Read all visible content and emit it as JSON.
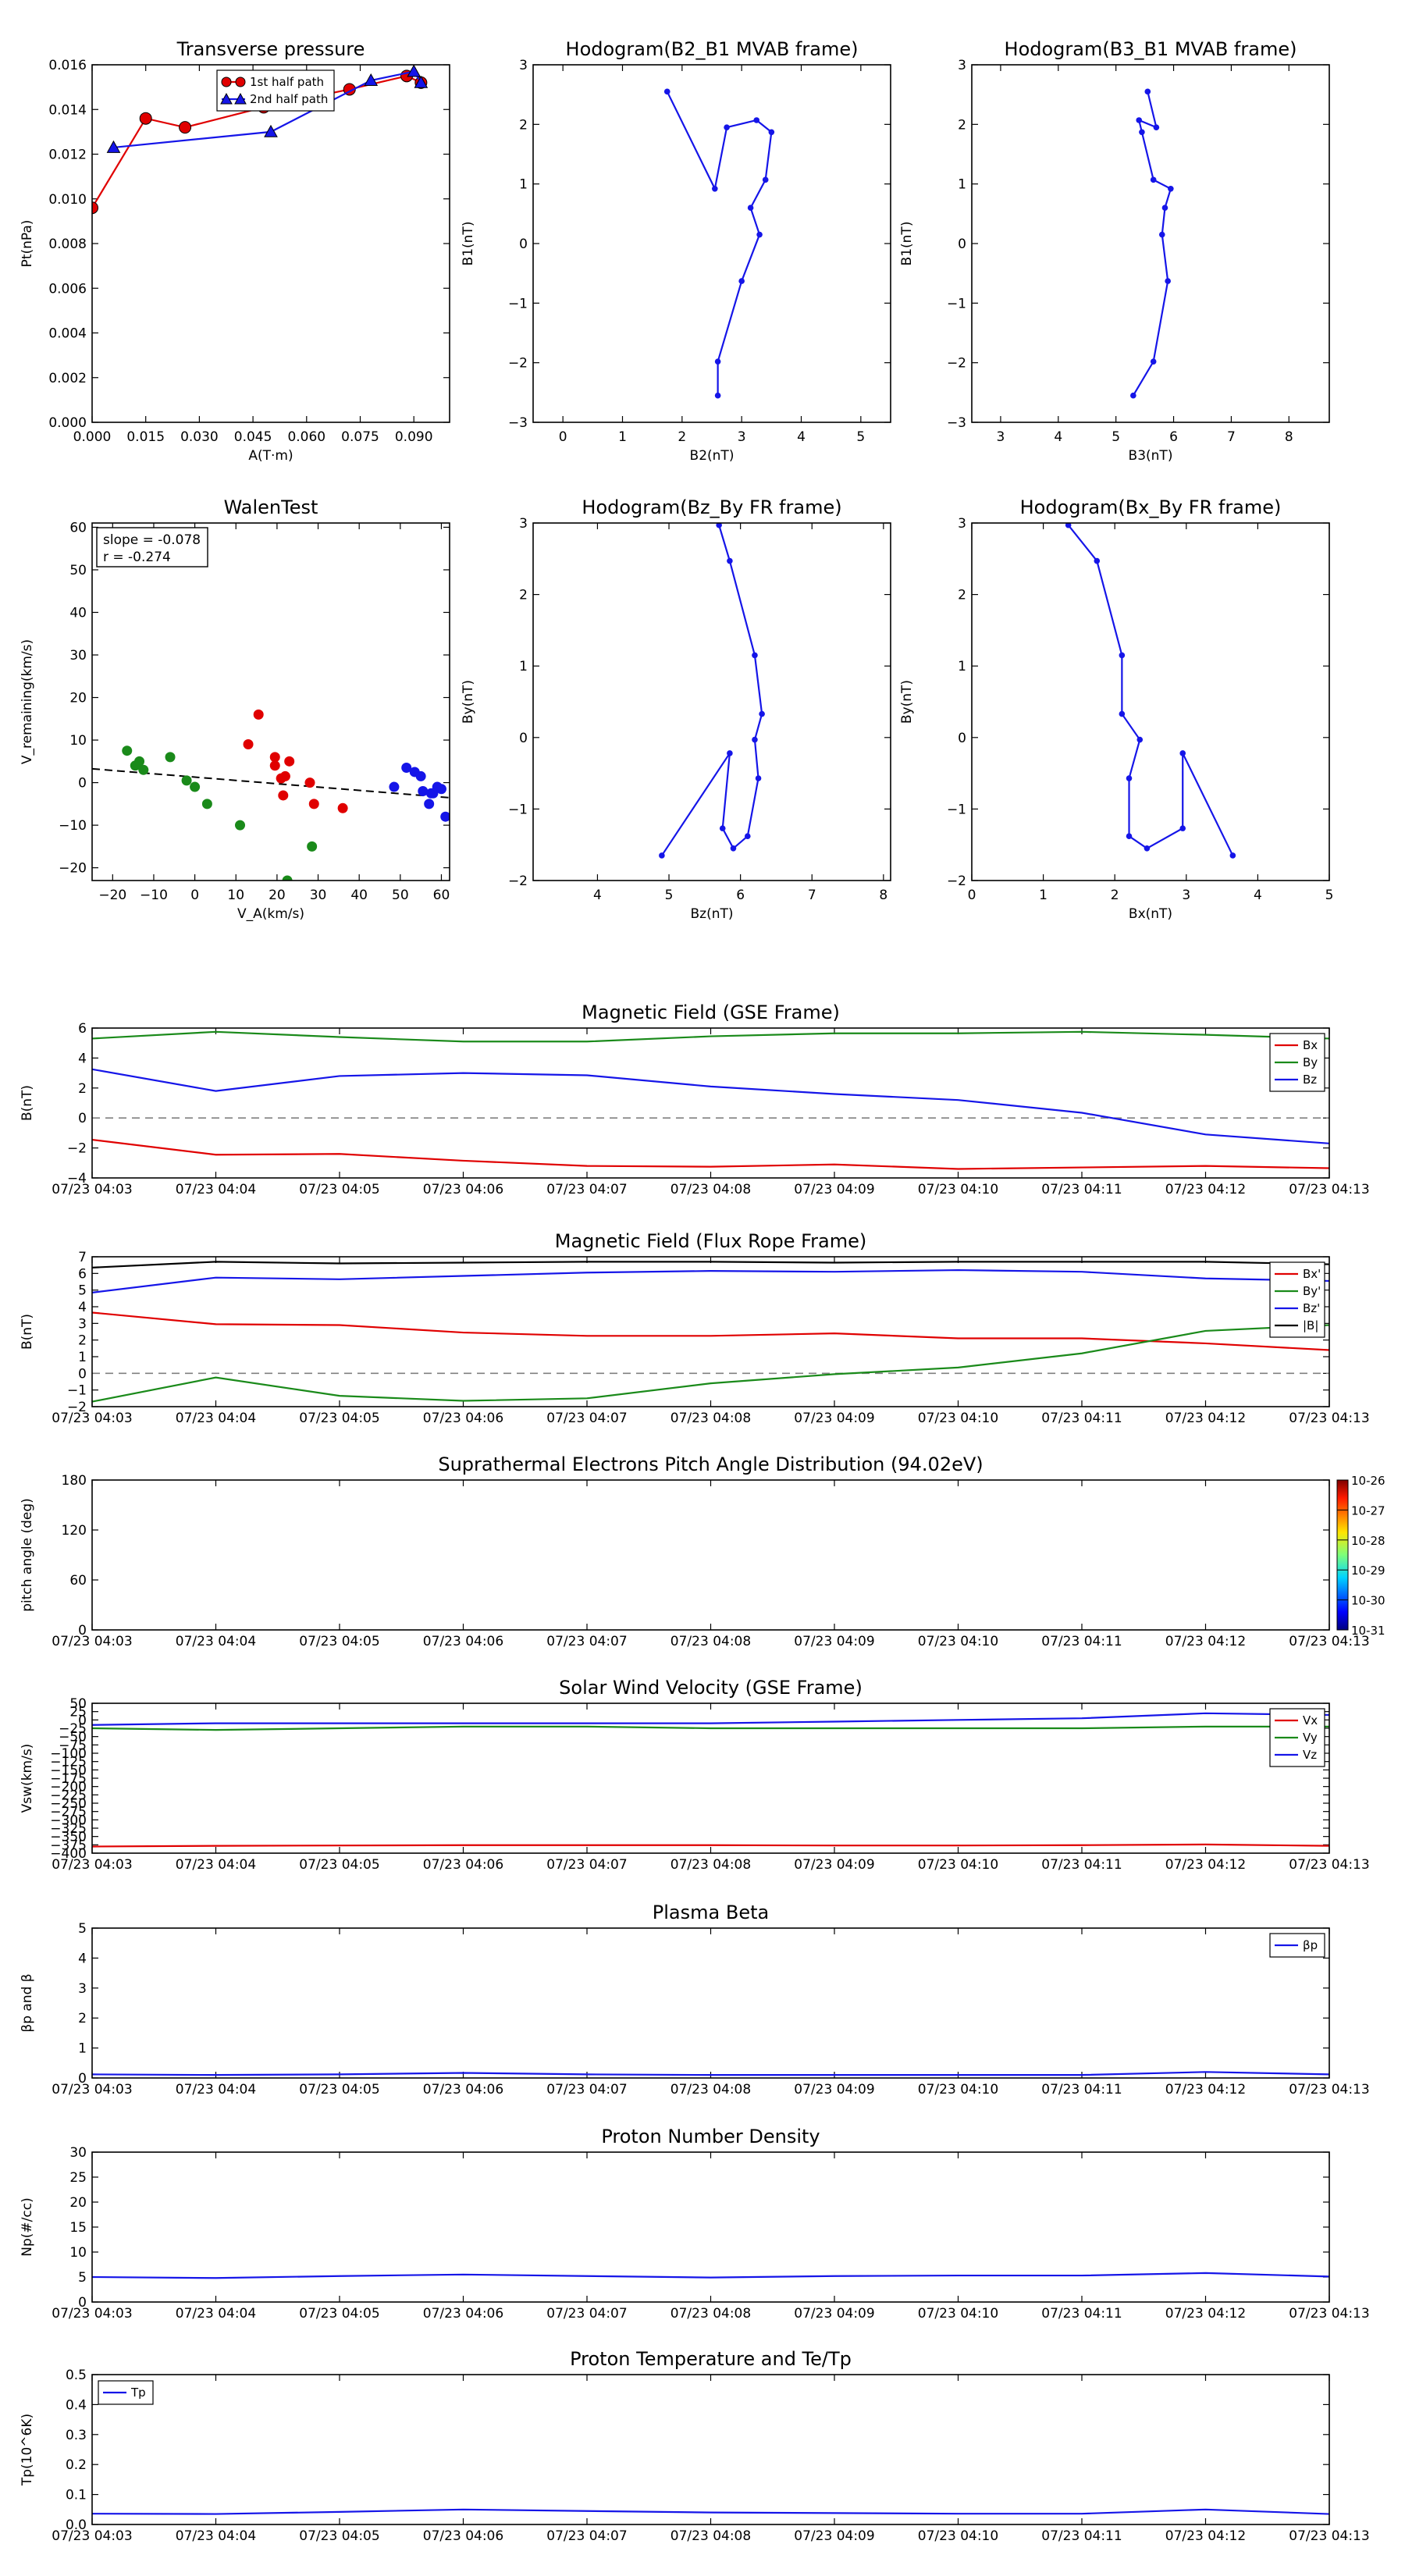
{
  "colors": {
    "red": "#e00000",
    "green": "#1a8a1a",
    "blue": "#1515e8",
    "black": "#000000",
    "dash": "#808080"
  },
  "chart_data": [
    {
      "id": "pt",
      "type": "line",
      "title": "Transverse pressure",
      "xlabel": "A(T·m)",
      "ylabel": "Pt(nPa)",
      "xlim": [
        0,
        0.1
      ],
      "ylim": [
        0,
        0.016
      ],
      "xticks": [
        0,
        0.015,
        0.03,
        0.045,
        0.06,
        0.075,
        0.09
      ],
      "xticklabels": [
        "0.000",
        "0.015",
        "0.030",
        "0.045",
        "0.060",
        "0.075",
        "0.090"
      ],
      "yticks": [
        0,
        0.002,
        0.004,
        0.006,
        0.008,
        0.01,
        0.012,
        0.014,
        0.016
      ],
      "yticklabels": [
        "0.000",
        "0.002",
        "0.004",
        "0.006",
        "0.008",
        "0.010",
        "0.012",
        "0.014",
        "0.016"
      ],
      "legend": "top-right",
      "series": [
        {
          "name": "1st half path",
          "color": "red",
          "marker": "circle",
          "x": [
            0.0,
            0.015,
            0.026,
            0.048,
            0.072,
            0.088,
            0.092
          ],
          "y": [
            0.0096,
            0.0136,
            0.0132,
            0.0141,
            0.0149,
            0.0155,
            0.0152
          ]
        },
        {
          "name": "2nd half path",
          "color": "blue",
          "marker": "triangle",
          "x": [
            0.006,
            0.05,
            0.078,
            0.09,
            0.092
          ],
          "y": [
            0.0123,
            0.013,
            0.0153,
            0.0157,
            0.0152
          ]
        }
      ]
    },
    {
      "id": "h1",
      "type": "line",
      "title": "Hodogram(B2_B1 MVAB frame)",
      "xlabel": "B2(nT)",
      "ylabel": "B1(nT)",
      "xlim": [
        -0.5,
        5.5
      ],
      "ylim": [
        -3,
        3
      ],
      "xticks": [
        0,
        1,
        2,
        3,
        4,
        5
      ],
      "xticklabels": [
        "0",
        "1",
        "2",
        "3",
        "4",
        "5"
      ],
      "yticks": [
        -3,
        -2,
        -1,
        0,
        1,
        2,
        3
      ],
      "yticklabels": [
        "−3",
        "−2",
        "−1",
        "0",
        "1",
        "2",
        "3"
      ],
      "series": [
        {
          "name": "",
          "color": "blue",
          "marker": "dot",
          "x": [
            1.75,
            2.55,
            2.75,
            3.25,
            3.5,
            3.4,
            3.15,
            3.3,
            3.0,
            2.6,
            2.6
          ],
          "y": [
            2.55,
            0.92,
            1.95,
            2.07,
            1.87,
            1.07,
            0.6,
            0.15,
            -0.63,
            -1.98,
            -2.55
          ]
        }
      ]
    },
    {
      "id": "h2",
      "type": "line",
      "title": "Hodogram(B3_B1 MVAB frame)",
      "xlabel": "B3(nT)",
      "ylabel": "B1(nT)",
      "xlim": [
        2.5,
        8.7
      ],
      "ylim": [
        -3,
        3
      ],
      "xticks": [
        3,
        4,
        5,
        6,
        7,
        8
      ],
      "xticklabels": [
        "3",
        "4",
        "5",
        "6",
        "7",
        "8"
      ],
      "yticks": [
        -3,
        -2,
        -1,
        0,
        1,
        2,
        3
      ],
      "yticklabels": [
        "−3",
        "−2",
        "−1",
        "0",
        "1",
        "2",
        "3"
      ],
      "series": [
        {
          "name": "",
          "color": "blue",
          "marker": "dot",
          "x": [
            5.55,
            5.7,
            5.4,
            5.45,
            5.65,
            5.95,
            5.85,
            5.8,
            5.9,
            5.65,
            5.3
          ],
          "y": [
            2.55,
            1.95,
            2.07,
            1.87,
            1.07,
            0.92,
            0.6,
            0.15,
            -0.63,
            -1.98,
            -2.55
          ]
        }
      ]
    },
    {
      "id": "walen",
      "type": "scatter",
      "title": "WalenTest",
      "xlabel": "V_A(km/s)",
      "ylabel": "V_remaining(km/s)",
      "xlim": [
        -25,
        62
      ],
      "ylim": [
        -23,
        61
      ],
      "xticks": [
        -20,
        -10,
        0,
        10,
        20,
        30,
        40,
        50,
        60
      ],
      "xticklabels": [
        "−20",
        "−10",
        "0",
        "10",
        "20",
        "30",
        "40",
        "50",
        "60"
      ],
      "yticks": [
        -20,
        -10,
        0,
        10,
        20,
        30,
        40,
        50,
        60
      ],
      "yticklabels": [
        "−20",
        "−10",
        "0",
        "10",
        "20",
        "30",
        "40",
        "50",
        "60"
      ],
      "annotation": [
        "slope = -0.078",
        "r = -0.274"
      ],
      "fit": {
        "slope": -0.078,
        "intercept": 1.3
      },
      "series": [
        {
          "name": "",
          "color": "green",
          "x": [
            -16.5,
            -14.5,
            -13.5,
            -12.5,
            -6,
            -2,
            0,
            3,
            11,
            22.5,
            28.5
          ],
          "y": [
            7.5,
            4,
            5,
            3,
            6,
            0.5,
            -1,
            -5,
            -10,
            -23,
            -15
          ]
        },
        {
          "name": "",
          "color": "red",
          "x": [
            13,
            15.5,
            19.5,
            19.5,
            21,
            21.5,
            22,
            23,
            28,
            29,
            36
          ],
          "y": [
            9,
            16,
            6,
            4,
            1,
            -3,
            1.5,
            5,
            0,
            -5,
            -6
          ]
        },
        {
          "name": "",
          "color": "blue",
          "x": [
            48.5,
            51.5,
            53.5,
            55,
            55.5,
            57,
            57.5,
            58,
            59,
            60,
            61
          ],
          "y": [
            -1,
            3.5,
            2.5,
            1.5,
            -2,
            -5,
            -2.5,
            -2.5,
            -1,
            -1.5,
            -8
          ]
        }
      ]
    },
    {
      "id": "h3",
      "type": "line",
      "title": "Hodogram(Bz_By FR frame)",
      "xlabel": "Bz(nT)",
      "ylabel": "By(nT)",
      "xlim": [
        3.1,
        8.1
      ],
      "ylim": [
        -2,
        3
      ],
      "xticks": [
        4,
        5,
        6,
        7,
        8
      ],
      "xticklabels": [
        "4",
        "5",
        "6",
        "7",
        "8"
      ],
      "yticks": [
        -2,
        -1,
        0,
        1,
        2,
        3
      ],
      "yticklabels": [
        "−2",
        "−1",
        "0",
        "1",
        "2",
        "3"
      ],
      "series": [
        {
          "name": "",
          "color": "blue",
          "marker": "dot",
          "x": [
            5.7,
            5.85,
            6.2,
            6.3,
            6.2,
            6.25,
            6.1,
            5.9,
            5.75,
            5.85,
            4.9
          ],
          "y": [
            2.97,
            2.47,
            1.15,
            0.33,
            -0.03,
            -0.57,
            -1.38,
            -1.55,
            -1.27,
            -0.22,
            -1.65
          ]
        }
      ]
    },
    {
      "id": "h4",
      "type": "line",
      "title": "Hodogram(Bx_By FR frame)",
      "xlabel": "Bx(nT)",
      "ylabel": "By(nT)",
      "xlim": [
        0,
        5
      ],
      "ylim": [
        -2,
        3
      ],
      "xticks": [
        0,
        1,
        2,
        3,
        4,
        5
      ],
      "xticklabels": [
        "0",
        "1",
        "2",
        "3",
        "4",
        "5"
      ],
      "yticks": [
        -2,
        -1,
        0,
        1,
        2,
        3
      ],
      "yticklabels": [
        "−2",
        "−1",
        "0",
        "1",
        "2",
        "3"
      ],
      "series": [
        {
          "name": "",
          "color": "blue",
          "marker": "dot",
          "x": [
            1.35,
            1.75,
            2.1,
            2.1,
            2.35,
            2.2,
            2.2,
            2.45,
            2.95,
            2.95,
            3.65
          ],
          "y": [
            2.97,
            2.47,
            1.15,
            0.33,
            -0.03,
            -0.57,
            -1.38,
            -1.55,
            -1.27,
            -0.22,
            -1.65
          ]
        }
      ]
    },
    {
      "id": "bgse",
      "type": "line",
      "title": "Magnetic Field (GSE Frame)",
      "xlabel": "",
      "ylabel": "B(nT)",
      "ylim": [
        -4,
        6
      ],
      "yticks": [
        -4,
        -2,
        0,
        2,
        4,
        6
      ],
      "yticklabels": [
        "−4",
        "−2",
        "0",
        "2",
        "4",
        "6"
      ],
      "zero_line": true,
      "legend": "top-right",
      "series": [
        {
          "name": "Bx",
          "color": "red",
          "values": [
            -1.45,
            -2.45,
            -2.4,
            -2.85,
            -3.2,
            -3.25,
            -3.1,
            -3.4,
            -3.3,
            -3.2,
            -3.35
          ]
        },
        {
          "name": "By",
          "color": "green",
          "values": [
            5.3,
            5.75,
            5.4,
            5.1,
            5.1,
            5.45,
            5.65,
            5.65,
            5.75,
            5.55,
            5.3
          ]
        },
        {
          "name": "Bz",
          "color": "blue",
          "values": [
            3.25,
            1.8,
            2.8,
            3.0,
            2.85,
            2.1,
            1.6,
            1.2,
            0.35,
            -1.1,
            -1.7
          ]
        }
      ]
    },
    {
      "id": "bfr",
      "type": "line",
      "title": "Magnetic Field (Flux Rope Frame)",
      "xlabel": "",
      "ylabel": "B(nT)",
      "ylim": [
        -2,
        7
      ],
      "yticks": [
        -2,
        -1,
        0,
        1,
        2,
        3,
        4,
        5,
        6,
        7
      ],
      "yticklabels": [
        "−2",
        "−1",
        "0",
        "1",
        "2",
        "3",
        "4",
        "5",
        "6",
        "7"
      ],
      "zero_line": true,
      "legend": "top-right",
      "series": [
        {
          "name": "Bx'",
          "color": "red",
          "values": [
            3.65,
            2.95,
            2.9,
            2.45,
            2.25,
            2.25,
            2.4,
            2.1,
            2.1,
            1.8,
            1.4
          ]
        },
        {
          "name": "By'",
          "color": "green",
          "values": [
            -1.7,
            -0.25,
            -1.35,
            -1.65,
            -1.5,
            -0.6,
            -0.05,
            0.35,
            1.2,
            2.55,
            2.9
          ]
        },
        {
          "name": "Bz'",
          "color": "blue",
          "values": [
            4.85,
            5.75,
            5.65,
            5.85,
            6.05,
            6.15,
            6.1,
            6.2,
            6.1,
            5.7,
            5.55
          ]
        },
        {
          "name": "|B|",
          "color": "black",
          "values": [
            6.35,
            6.7,
            6.6,
            6.65,
            6.7,
            6.7,
            6.65,
            6.7,
            6.7,
            6.7,
            6.55
          ]
        }
      ]
    },
    {
      "id": "pad",
      "type": "heatmap",
      "title": "Suprathermal Electrons Pitch Angle Distribution (94.02eV)",
      "xlabel": "",
      "ylabel": "pitch angle (deg)",
      "ylim": [
        0,
        180
      ],
      "yticks": [
        0,
        60,
        120,
        180
      ],
      "yticklabels": [
        "0",
        "60",
        "120",
        "180"
      ],
      "colorbar": {
        "labels": [
          "10-26",
          "10-27",
          "10-28",
          "10-29",
          "10-30",
          "10-31"
        ]
      },
      "series": []
    },
    {
      "id": "vsw",
      "type": "line",
      "title": "Solar Wind Velocity (GSE Frame)",
      "xlabel": "",
      "ylabel": "Vsw(km/s)",
      "ylim": [
        -400,
        50
      ],
      "yticks": [
        -400,
        -375,
        -350,
        -325,
        -300,
        -275,
        -250,
        -225,
        -200,
        -175,
        -150,
        -125,
        -100,
        -75,
        -50,
        -25,
        0,
        25,
        50
      ],
      "yticklabels": [
        "−400",
        "−375",
        "−350",
        "−325",
        "−300",
        "−275",
        "−250",
        "−225",
        "−200",
        "−175",
        "−150",
        "−125",
        "−100",
        "−75",
        "−50",
        "−25",
        "0",
        "25",
        "50"
      ],
      "legend": "top-right",
      "series": [
        {
          "name": "Vx",
          "color": "red",
          "values": [
            -380,
            -378,
            -377,
            -376,
            -376,
            -376,
            -377,
            -377,
            -376,
            -374,
            -378
          ]
        },
        {
          "name": "Vy",
          "color": "green",
          "values": [
            -25,
            -30,
            -25,
            -20,
            -20,
            -25,
            -25,
            -25,
            -25,
            -20,
            -20
          ]
        },
        {
          "name": "Vz",
          "color": "blue",
          "values": [
            -15,
            -10,
            -10,
            -10,
            -10,
            -10,
            -5,
            0,
            5,
            20,
            15
          ]
        }
      ]
    },
    {
      "id": "beta",
      "type": "line",
      "title": "Plasma Beta",
      "xlabel": "",
      "ylabel": "βp and β",
      "ylim": [
        0,
        5
      ],
      "yticks": [
        0,
        1,
        2,
        3,
        4,
        5
      ],
      "yticklabels": [
        "0",
        "1",
        "2",
        "3",
        "4",
        "5"
      ],
      "legend": "top-right",
      "series": [
        {
          "name": "βp",
          "color": "blue",
          "values": [
            0.12,
            0.1,
            0.12,
            0.17,
            0.12,
            0.1,
            0.1,
            0.1,
            0.1,
            0.2,
            0.12
          ]
        }
      ]
    },
    {
      "id": "np",
      "type": "line",
      "title": "Proton Number Density",
      "xlabel": "",
      "ylabel": "Np(#/cc)",
      "ylim": [
        0,
        30
      ],
      "yticks": [
        0,
        5,
        10,
        15,
        20,
        25,
        30
      ],
      "yticklabels": [
        "0",
        "5",
        "10",
        "15",
        "20",
        "25",
        "30"
      ],
      "series": [
        {
          "name": "",
          "color": "blue",
          "values": [
            5.0,
            4.8,
            5.2,
            5.5,
            5.2,
            4.9,
            5.2,
            5.3,
            5.3,
            5.8,
            5.1
          ]
        }
      ]
    },
    {
      "id": "tp",
      "type": "line",
      "title": "Proton Temperature and Te/Tp",
      "xlabel": "",
      "ylabel": "Tp(10^6K)",
      "ylim": [
        0,
        0.5
      ],
      "yticks": [
        0,
        0.1,
        0.2,
        0.3,
        0.4,
        0.5
      ],
      "yticklabels": [
        "0.0",
        "0.1",
        "0.2",
        "0.3",
        "0.4",
        "0.5"
      ],
      "legend": "top-left",
      "series": [
        {
          "name": "Tp",
          "color": "blue",
          "values": [
            0.036,
            0.035,
            0.042,
            0.05,
            0.045,
            0.04,
            0.038,
            0.036,
            0.036,
            0.05,
            0.035
          ]
        }
      ]
    }
  ],
  "time_ticklabels": [
    "07/23 04:03",
    "07/23 04:04",
    "07/23 04:05",
    "07/23 04:06",
    "07/23 04:07",
    "07/23 04:08",
    "07/23 04:09",
    "07/23 04:10",
    "07/23 04:11",
    "07/23 04:12",
    "07/23 04:13"
  ]
}
